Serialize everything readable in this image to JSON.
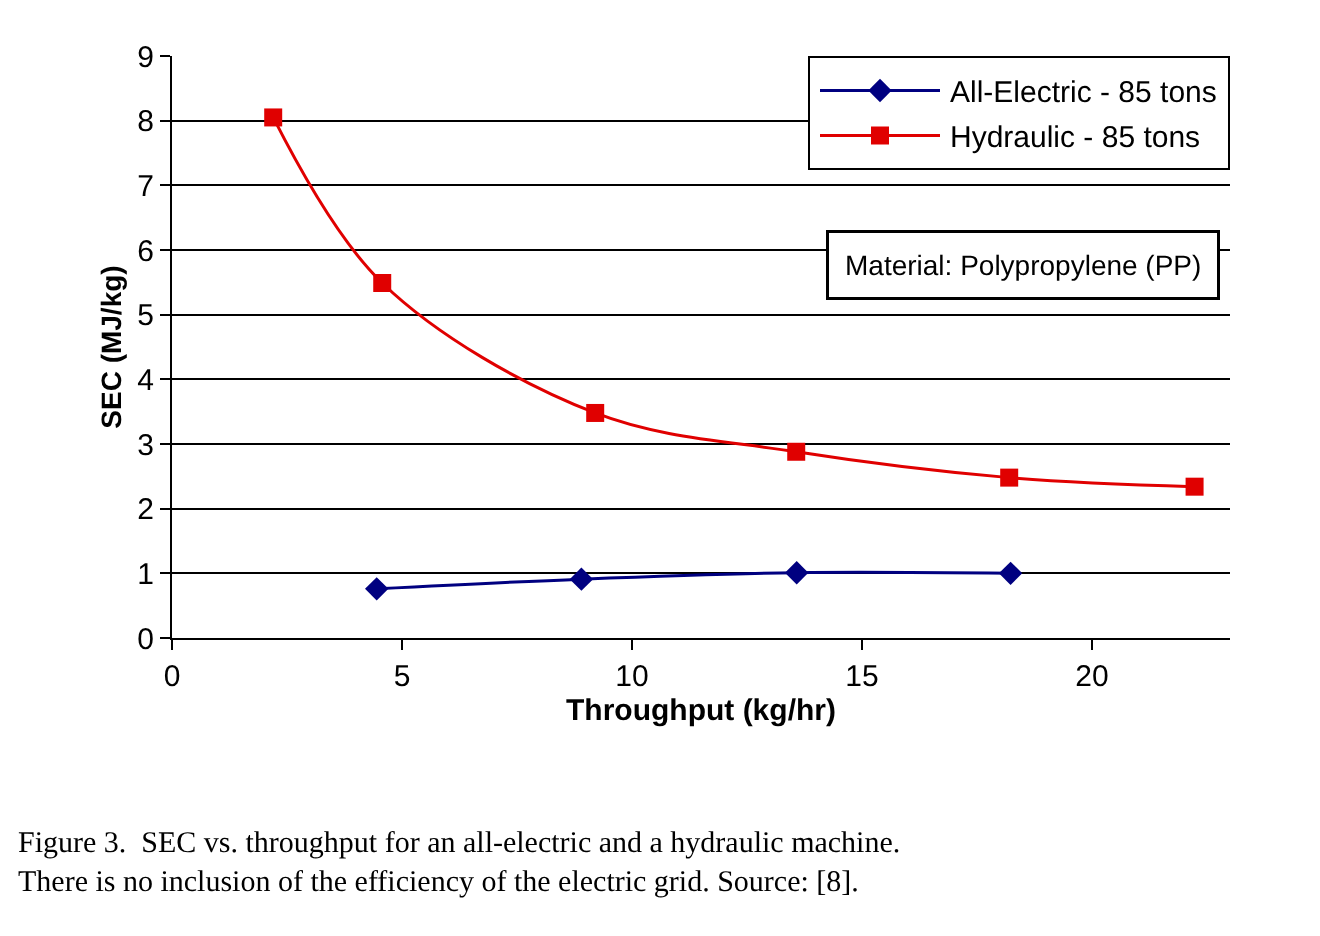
{
  "chart_data": {
    "type": "line",
    "xlabel": "Throughput (kg/hr)",
    "ylabel": "SEC (MJ/kg)",
    "xlim": [
      0,
      23
    ],
    "xticks": [
      0,
      5,
      10,
      15,
      20
    ],
    "ylim": [
      0,
      9
    ],
    "yticks": [
      0,
      1,
      2,
      3,
      4,
      5,
      6,
      7,
      8,
      9
    ],
    "grid": "y",
    "legend": "top right",
    "series": [
      {
        "name": "All-Electric - 85 tons",
        "color": "#000080",
        "marker": "diamond",
        "x": [
          4.45,
          8.9,
          13.58,
          18.23
        ],
        "values": [
          0.76,
          0.91,
          1.01,
          1.0
        ]
      },
      {
        "name": "Hydraulic - 85 tons",
        "color": "#e00000",
        "marker": "square",
        "x": [
          2.2,
          4.57,
          9.2,
          13.57,
          18.2,
          22.23
        ],
        "values": [
          8.05,
          5.49,
          3.48,
          2.88,
          2.48,
          2.34
        ]
      }
    ],
    "annotations": [
      "Material: Polypropylene (PP)",
      "Figure 3.  SEC vs. throughput for an all-electric and a hydraulic machine.\nThere is no inclusion of the efficiency of the electric grid. Source: [8]."
    ]
  }
}
